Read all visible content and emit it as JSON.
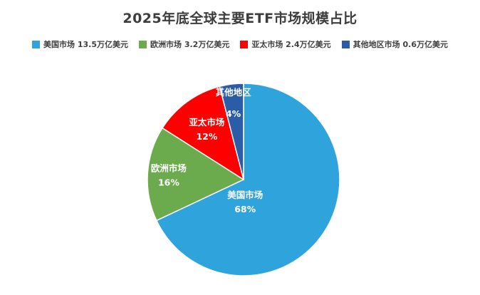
{
  "chart_data": {
    "type": "pie",
    "title": "2025年底全球主要ETF市场规模占比",
    "unit": "万亿美元",
    "legend_position": "top",
    "label_format": "name + percent",
    "slices": [
      {
        "name": "美国市场",
        "value": 13.5,
        "pct": 68,
        "color": "#2FA3DC",
        "label_angle": 176,
        "label_r": 0.23,
        "label_lines_dy": [
          -5,
          15
        ]
      },
      {
        "name": "欧洲市场",
        "value": 3.2,
        "pct": 16,
        "color": "#6CAB4D",
        "label_angle": 273.6,
        "label_r": 0.78,
        "label_lines_dy": [
          -5,
          15
        ]
      },
      {
        "name": "亚太市场",
        "value": 2.4,
        "pct": 12,
        "color": "#FE0000",
        "label_angle": 324,
        "label_r": 0.65,
        "label_lines_dy": [
          -5,
          15
        ]
      },
      {
        "name": "其他地区",
        "value": 0.6,
        "pct": 4,
        "color": "#2A5CA8",
        "label_angle": 352.8,
        "label_r": 0.85,
        "label_lines_dy": [
          -4,
          26
        ]
      }
    ],
    "legend": [
      {
        "label": "美国市场 13.5万亿美元",
        "color": "#2FA3DC"
      },
      {
        "label": "欧洲市场 3.2万亿美元",
        "color": "#6CAB4D"
      },
      {
        "label": "亚太市场 2.4万亿美元",
        "color": "#FE0000"
      },
      {
        "label": "其他地区市场 0.6万亿美元",
        "color": "#2A5CA8"
      }
    ]
  }
}
